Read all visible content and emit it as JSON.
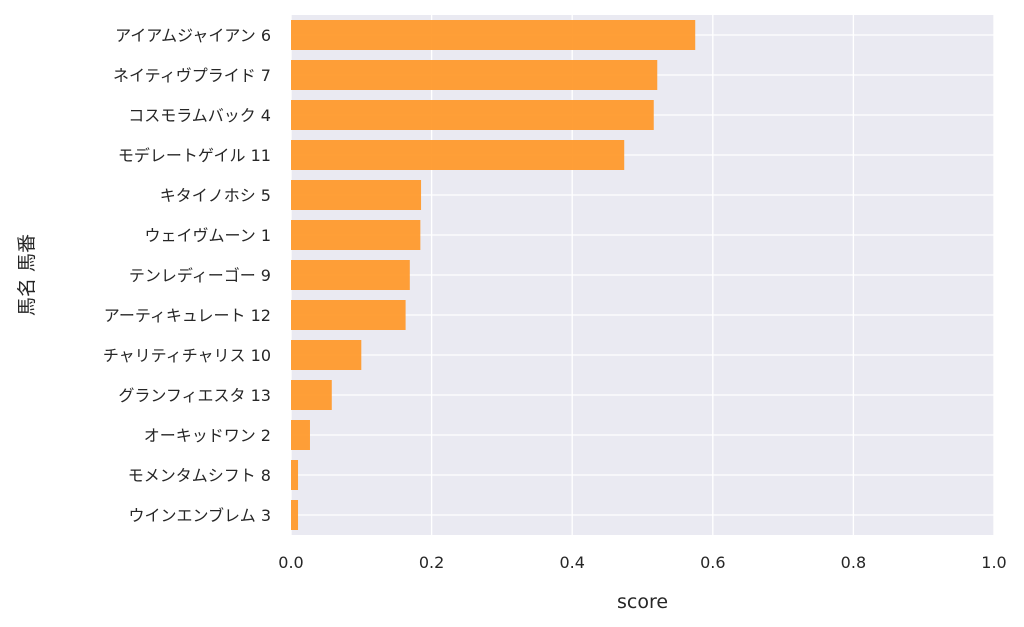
{
  "chart_data": {
    "type": "bar",
    "orientation": "horizontal",
    "categories": [
      "アイアムジャイアン 6",
      "ネイティヴプライド 7",
      "コスモラムバック 4",
      "モデレートゲイル 11",
      "キタイノホシ 5",
      "ウェイヴムーン 1",
      "テンレディーゴー 9",
      "アーティキュレート 12",
      "チャリティチャリス 10",
      "グランフィエスタ 13",
      "オーキッドワン 2",
      "モメンタムシフト 8",
      "ウインエンブレム 3"
    ],
    "values": [
      0.575,
      0.521,
      0.516,
      0.474,
      0.185,
      0.184,
      0.169,
      0.163,
      0.1,
      0.058,
      0.027,
      0.01,
      0.01
    ],
    "xlabel": "score",
    "ylabel": "馬名 馬番",
    "xlim": [
      0,
      1.0
    ],
    "xticks": [
      "0.0",
      "0.2",
      "0.4",
      "0.6",
      "0.8",
      "1.0"
    ],
    "grid": true,
    "colors": {
      "bar": "#ff9a2c",
      "background": "#eaeaf2",
      "grid": "#ffffff",
      "text": "#262626"
    }
  }
}
